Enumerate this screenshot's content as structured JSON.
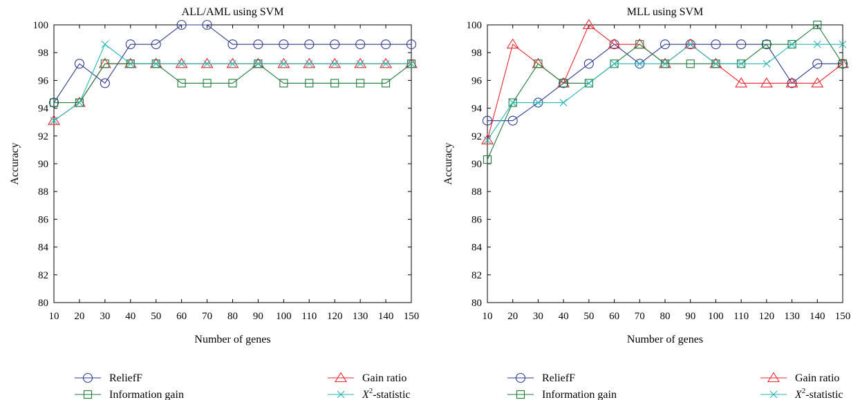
{
  "series_style": [
    {
      "name": "ReliefF",
      "marker": "circle",
      "color": "#2b3990"
    },
    {
      "name": "Gain ratio",
      "marker": "triangle",
      "color": "#e8242b"
    },
    {
      "name": "Information gain",
      "marker": "square",
      "color": "#1f7a3a"
    },
    {
      "name": "X²-statistic",
      "name_base": "X",
      "name_sup": "2",
      "name_rest": "-statistic",
      "marker": "x",
      "color": "#25b5b5"
    }
  ],
  "chart_data": [
    {
      "type": "line",
      "title": "ALL/AML using SVM",
      "xlabel": "Number of genes",
      "ylabel": "Accuracy",
      "x": [
        10,
        20,
        30,
        40,
        50,
        60,
        70,
        80,
        90,
        100,
        110,
        120,
        130,
        140,
        150
      ],
      "xlim": [
        10,
        150
      ],
      "ylim": [
        80,
        100
      ],
      "yticks": [
        80,
        82,
        84,
        86,
        88,
        90,
        92,
        94,
        96,
        98,
        100
      ],
      "grid": false,
      "legend": "bottom",
      "series": [
        {
          "name": "ReliefF",
          "values": [
            94.4,
            97.2,
            95.8,
            98.6,
            98.6,
            100,
            100,
            98.6,
            98.6,
            98.6,
            98.6,
            98.6,
            98.6,
            98.6,
            98.6
          ]
        },
        {
          "name": "Gain ratio",
          "values": [
            93.1,
            94.4,
            97.2,
            97.2,
            97.2,
            97.2,
            97.2,
            97.2,
            97.2,
            97.2,
            97.2,
            97.2,
            97.2,
            97.2,
            97.2
          ]
        },
        {
          "name": "Information gain",
          "values": [
            94.4,
            94.4,
            97.2,
            97.2,
            97.2,
            95.8,
            95.8,
            95.8,
            97.2,
            95.8,
            95.8,
            95.8,
            95.8,
            95.8,
            97.2
          ]
        },
        {
          "name": "X²-statistic",
          "values": [
            93.1,
            94.4,
            98.6,
            97.2,
            97.2,
            97.2,
            97.2,
            97.2,
            97.2,
            97.2,
            97.2,
            97.2,
            97.2,
            97.2,
            97.2
          ]
        }
      ]
    },
    {
      "type": "line",
      "title": "MLL using SVM",
      "xlabel": "Number of genes",
      "ylabel": "Accuracy",
      "x": [
        10,
        20,
        30,
        40,
        50,
        60,
        70,
        80,
        90,
        100,
        110,
        120,
        130,
        140,
        150
      ],
      "xlim": [
        10,
        150
      ],
      "ylim": [
        80,
        100
      ],
      "yticks": [
        80,
        82,
        84,
        86,
        88,
        90,
        92,
        94,
        96,
        98,
        100
      ],
      "grid": false,
      "legend": "bottom",
      "series": [
        {
          "name": "ReliefF",
          "values": [
            93.1,
            93.1,
            94.4,
            95.8,
            97.2,
            98.6,
            97.2,
            98.6,
            98.6,
            98.6,
            98.6,
            98.6,
            95.8,
            97.2,
            97.2
          ]
        },
        {
          "name": "Gain ratio",
          "values": [
            91.7,
            98.6,
            97.2,
            95.8,
            100,
            98.6,
            98.6,
            97.2,
            98.6,
            97.2,
            95.8,
            95.8,
            95.8,
            95.8,
            97.2
          ]
        },
        {
          "name": "Information gain",
          "values": [
            90.3,
            94.4,
            97.2,
            95.8,
            95.8,
            97.2,
            98.6,
            97.2,
            97.2,
            97.2,
            97.2,
            98.6,
            98.6,
            100,
            97.2
          ]
        },
        {
          "name": "X²-statistic",
          "values": [
            91.7,
            94.4,
            94.4,
            94.4,
            95.8,
            97.2,
            97.2,
            97.2,
            98.6,
            97.2,
            97.2,
            97.2,
            98.6,
            98.6,
            98.6
          ]
        }
      ]
    }
  ]
}
